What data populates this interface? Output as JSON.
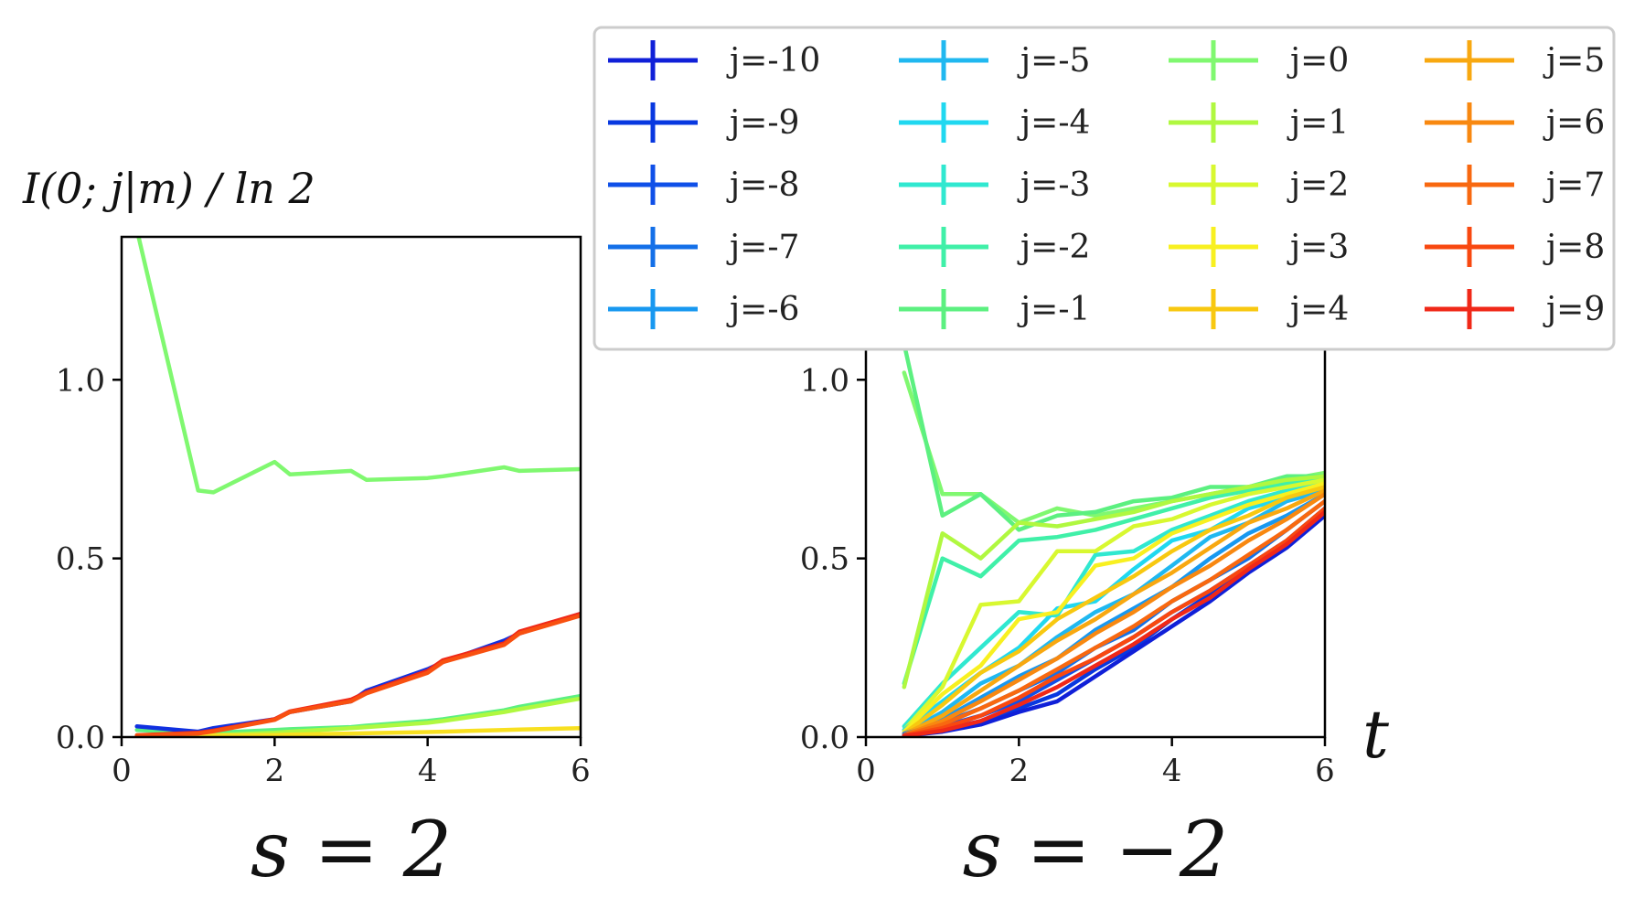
{
  "chart_data": [
    {
      "type": "line",
      "title": "s = 2",
      "ylabel": "I(0; j|m) / ln 2",
      "xlabel": "",
      "xlim": [
        0,
        6
      ],
      "ylim": [
        0,
        1.4
      ],
      "xticks": [
        "0",
        "2",
        "4",
        "6"
      ],
      "yticks": [
        "0.0",
        "0.5",
        "1.0"
      ],
      "x": [
        0.2,
        1.0,
        1.2,
        2.0,
        2.2,
        3.0,
        3.2,
        4.0,
        4.2,
        5.0,
        5.2,
        6.0
      ],
      "series": [
        {
          "name": "j=0",
          "color": "#80f870",
          "values": [
            1.42,
            0.69,
            0.685,
            0.77,
            0.735,
            0.745,
            0.72,
            0.725,
            0.73,
            0.755,
            0.745,
            0.75
          ]
        },
        {
          "name": "j=-1",
          "color": "#5cf080",
          "values": [
            0.02,
            0.012,
            0.012,
            0.02,
            0.022,
            0.028,
            0.032,
            0.045,
            0.05,
            0.075,
            0.085,
            0.115
          ]
        },
        {
          "name": "j=1",
          "color": "#b0f840",
          "values": [
            0.005,
            0.005,
            0.006,
            0.012,
            0.015,
            0.025,
            0.028,
            0.04,
            0.045,
            0.07,
            0.078,
            0.108
          ]
        },
        {
          "name": "j=2",
          "color": "#f8e020",
          "values": [
            0.002,
            0.003,
            0.004,
            0.006,
            0.007,
            0.01,
            0.011,
            0.014,
            0.015,
            0.02,
            0.021,
            0.025
          ]
        },
        {
          "name": "j=-10",
          "color": "#1030e0",
          "values": [
            0.03,
            0.015,
            0.025,
            0.05,
            0.07,
            0.1,
            0.13,
            0.19,
            0.21,
            0.27,
            0.29,
            0.345
          ]
        },
        {
          "name": "j=9",
          "color": "#f02818",
          "values": [
            0.005,
            0.012,
            0.018,
            0.05,
            0.072,
            0.105,
            0.125,
            0.185,
            0.215,
            0.262,
            0.295,
            0.345
          ]
        },
        {
          "name": "j=8",
          "color": "#f85010",
          "values": [
            0.004,
            0.01,
            0.016,
            0.048,
            0.07,
            0.1,
            0.122,
            0.18,
            0.21,
            0.258,
            0.29,
            0.34
          ]
        }
      ]
    },
    {
      "type": "line",
      "title": "s = −2",
      "xlabel": "t",
      "xlim": [
        0,
        6
      ],
      "ylim": [
        0,
        1.4
      ],
      "xticks": [
        "0",
        "2",
        "4",
        "6"
      ],
      "yticks": [
        "0.0",
        "0.5",
        "1.0"
      ],
      "x": [
        0.5,
        1.0,
        1.5,
        2.0,
        2.5,
        3.0,
        3.5,
        4.0,
        4.5,
        5.0,
        5.5,
        6.0
      ],
      "series": [
        {
          "name": "j=0",
          "color": "#80f870",
          "values": [
            1.02,
            0.68,
            0.68,
            0.6,
            0.64,
            0.62,
            0.64,
            0.66,
            0.68,
            0.7,
            0.72,
            0.74
          ]
        },
        {
          "name": "j=-1",
          "color": "#5cf080",
          "values": [
            1.1,
            0.62,
            0.68,
            0.58,
            0.62,
            0.63,
            0.66,
            0.67,
            0.7,
            0.7,
            0.73,
            0.73
          ]
        },
        {
          "name": "j=-2",
          "color": "#40f0a8",
          "values": [
            0.15,
            0.5,
            0.45,
            0.55,
            0.56,
            0.58,
            0.61,
            0.64,
            0.67,
            0.69,
            0.71,
            0.72
          ]
        },
        {
          "name": "j=1",
          "color": "#b0f840",
          "values": [
            0.14,
            0.57,
            0.5,
            0.6,
            0.59,
            0.61,
            0.63,
            0.66,
            0.68,
            0.7,
            0.72,
            0.73
          ]
        },
        {
          "name": "j=-3",
          "color": "#30e8d0",
          "values": [
            0.03,
            0.15,
            0.25,
            0.35,
            0.34,
            0.51,
            0.52,
            0.58,
            0.62,
            0.66,
            0.69,
            0.71
          ]
        },
        {
          "name": "j=2",
          "color": "#d8f830",
          "values": [
            0.02,
            0.14,
            0.37,
            0.38,
            0.52,
            0.52,
            0.59,
            0.61,
            0.65,
            0.68,
            0.7,
            0.72
          ]
        },
        {
          "name": "j=-4",
          "color": "#20d8f0",
          "values": [
            0.02,
            0.1,
            0.18,
            0.25,
            0.36,
            0.38,
            0.47,
            0.55,
            0.58,
            0.64,
            0.67,
            0.7
          ]
        },
        {
          "name": "j=3",
          "color": "#f8f020",
          "values": [
            0.015,
            0.12,
            0.2,
            0.33,
            0.35,
            0.48,
            0.5,
            0.57,
            0.61,
            0.65,
            0.68,
            0.71
          ]
        },
        {
          "name": "j=-5",
          "color": "#20b8f0",
          "values": [
            0.01,
            0.07,
            0.15,
            0.2,
            0.28,
            0.35,
            0.4,
            0.48,
            0.56,
            0.6,
            0.66,
            0.69
          ]
        },
        {
          "name": "j=4",
          "color": "#f8c810",
          "values": [
            0.01,
            0.09,
            0.18,
            0.24,
            0.33,
            0.39,
            0.45,
            0.52,
            0.58,
            0.62,
            0.67,
            0.7
          ]
        },
        {
          "name": "j=-6",
          "color": "#1898f0",
          "values": [
            0.01,
            0.05,
            0.11,
            0.17,
            0.22,
            0.3,
            0.36,
            0.42,
            0.5,
            0.57,
            0.62,
            0.68
          ]
        },
        {
          "name": "j=5",
          "color": "#f8a810",
          "values": [
            0.008,
            0.06,
            0.13,
            0.2,
            0.27,
            0.33,
            0.4,
            0.46,
            0.53,
            0.6,
            0.64,
            0.69
          ]
        },
        {
          "name": "j=-7",
          "color": "#1470e8",
          "values": [
            0.008,
            0.04,
            0.08,
            0.13,
            0.18,
            0.25,
            0.3,
            0.38,
            0.44,
            0.5,
            0.58,
            0.66
          ]
        },
        {
          "name": "j=6",
          "color": "#f88810",
          "values": [
            0.006,
            0.045,
            0.1,
            0.16,
            0.22,
            0.29,
            0.35,
            0.42,
            0.48,
            0.55,
            0.61,
            0.68
          ]
        },
        {
          "name": "j=-8",
          "color": "#1050e8",
          "values": [
            0.005,
            0.03,
            0.06,
            0.1,
            0.16,
            0.22,
            0.28,
            0.35,
            0.41,
            0.48,
            0.55,
            0.64
          ]
        },
        {
          "name": "j=7",
          "color": "#f86810",
          "values": [
            0.005,
            0.035,
            0.08,
            0.13,
            0.19,
            0.25,
            0.31,
            0.38,
            0.44,
            0.51,
            0.58,
            0.66
          ]
        },
        {
          "name": "j=-9",
          "color": "#0838e0",
          "values": [
            0.004,
            0.02,
            0.045,
            0.08,
            0.12,
            0.19,
            0.25,
            0.33,
            0.4,
            0.47,
            0.54,
            0.63
          ]
        },
        {
          "name": "j=8",
          "color": "#f84810",
          "values": [
            0.004,
            0.025,
            0.06,
            0.11,
            0.17,
            0.22,
            0.28,
            0.35,
            0.41,
            0.48,
            0.55,
            0.64
          ]
        },
        {
          "name": "j=-10",
          "color": "#1020d8",
          "values": [
            0.003,
            0.015,
            0.035,
            0.07,
            0.1,
            0.17,
            0.24,
            0.31,
            0.38,
            0.46,
            0.53,
            0.62
          ]
        },
        {
          "name": "j=9",
          "color": "#f02818",
          "values": [
            0.003,
            0.018,
            0.045,
            0.09,
            0.14,
            0.2,
            0.26,
            0.33,
            0.39,
            0.47,
            0.54,
            0.63
          ]
        }
      ]
    }
  ],
  "legend": {
    "placement": "top-right",
    "entries": [
      {
        "label": "j=-10",
        "color": "#1020d8"
      },
      {
        "label": "j=-9",
        "color": "#0838e0"
      },
      {
        "label": "j=-8",
        "color": "#1050e8"
      },
      {
        "label": "j=-7",
        "color": "#1470e8"
      },
      {
        "label": "j=-6",
        "color": "#1898f0"
      },
      {
        "label": "j=-5",
        "color": "#20b8f0"
      },
      {
        "label": "j=-4",
        "color": "#20d8f0"
      },
      {
        "label": "j=-3",
        "color": "#30e8d0"
      },
      {
        "label": "j=-2",
        "color": "#40f0a8"
      },
      {
        "label": "j=-1",
        "color": "#5cf080"
      },
      {
        "label": "j=0",
        "color": "#80f870"
      },
      {
        "label": "j=1",
        "color": "#b0f840"
      },
      {
        "label": "j=2",
        "color": "#d8f830"
      },
      {
        "label": "j=3",
        "color": "#f8f020"
      },
      {
        "label": "j=4",
        "color": "#f8c810"
      },
      {
        "label": "j=5",
        "color": "#f8a810"
      },
      {
        "label": "j=6",
        "color": "#f88810"
      },
      {
        "label": "j=7",
        "color": "#f86810"
      },
      {
        "label": "j=8",
        "color": "#f84810"
      },
      {
        "label": "j=9",
        "color": "#f02818"
      }
    ]
  }
}
